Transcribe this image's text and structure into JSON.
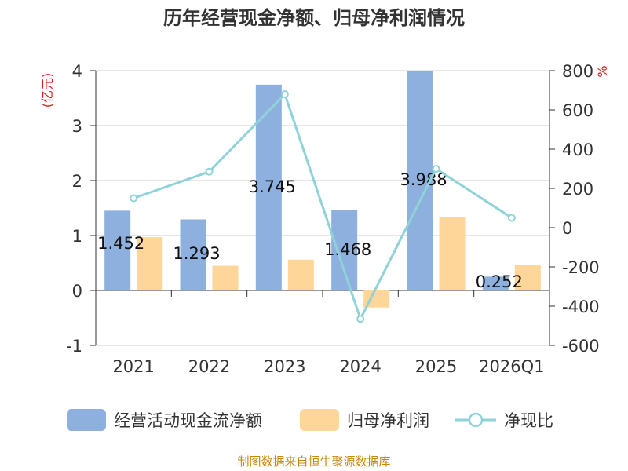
{
  "chart_data": {
    "type": "bar",
    "title": "历年经营现金净额、归母净利润情况",
    "categories": [
      "2021",
      "2022",
      "2023",
      "2024",
      "2025",
      "2026Q1"
    ],
    "left_axis": {
      "unit": "(亿元)",
      "ylim": [
        -1,
        4
      ],
      "ticks": [
        "-1",
        "0",
        "1",
        "2",
        "3",
        "4"
      ]
    },
    "right_axis": {
      "unit": "%",
      "ylim": [
        -600,
        800
      ],
      "ticks": [
        "-600",
        "-400",
        "-200",
        "0",
        "200",
        "400",
        "600",
        "800"
      ]
    },
    "series": [
      {
        "name": "经营活动现金流净额",
        "kind": "bar",
        "axis": "left",
        "color": "#8eb0de",
        "values": [
          1.452,
          1.293,
          3.745,
          1.468,
          3.988,
          0.252
        ],
        "labels": [
          "1.452",
          "1.293",
          "3.745",
          "1.468",
          "3.988",
          "0.252"
        ]
      },
      {
        "name": "归母净利润",
        "kind": "bar",
        "axis": "left",
        "color": "#ffd699",
        "values": [
          0.97,
          0.45,
          0.56,
          -0.31,
          1.34,
          0.47
        ]
      },
      {
        "name": "净现比",
        "kind": "line",
        "axis": "right",
        "color": "#8fd3d8",
        "values": [
          150,
          285,
          680,
          -465,
          300,
          50
        ]
      }
    ],
    "grid": true,
    "legend": "bottom"
  },
  "footer": {
    "source": "制图数据来自恒生聚源数据库"
  }
}
